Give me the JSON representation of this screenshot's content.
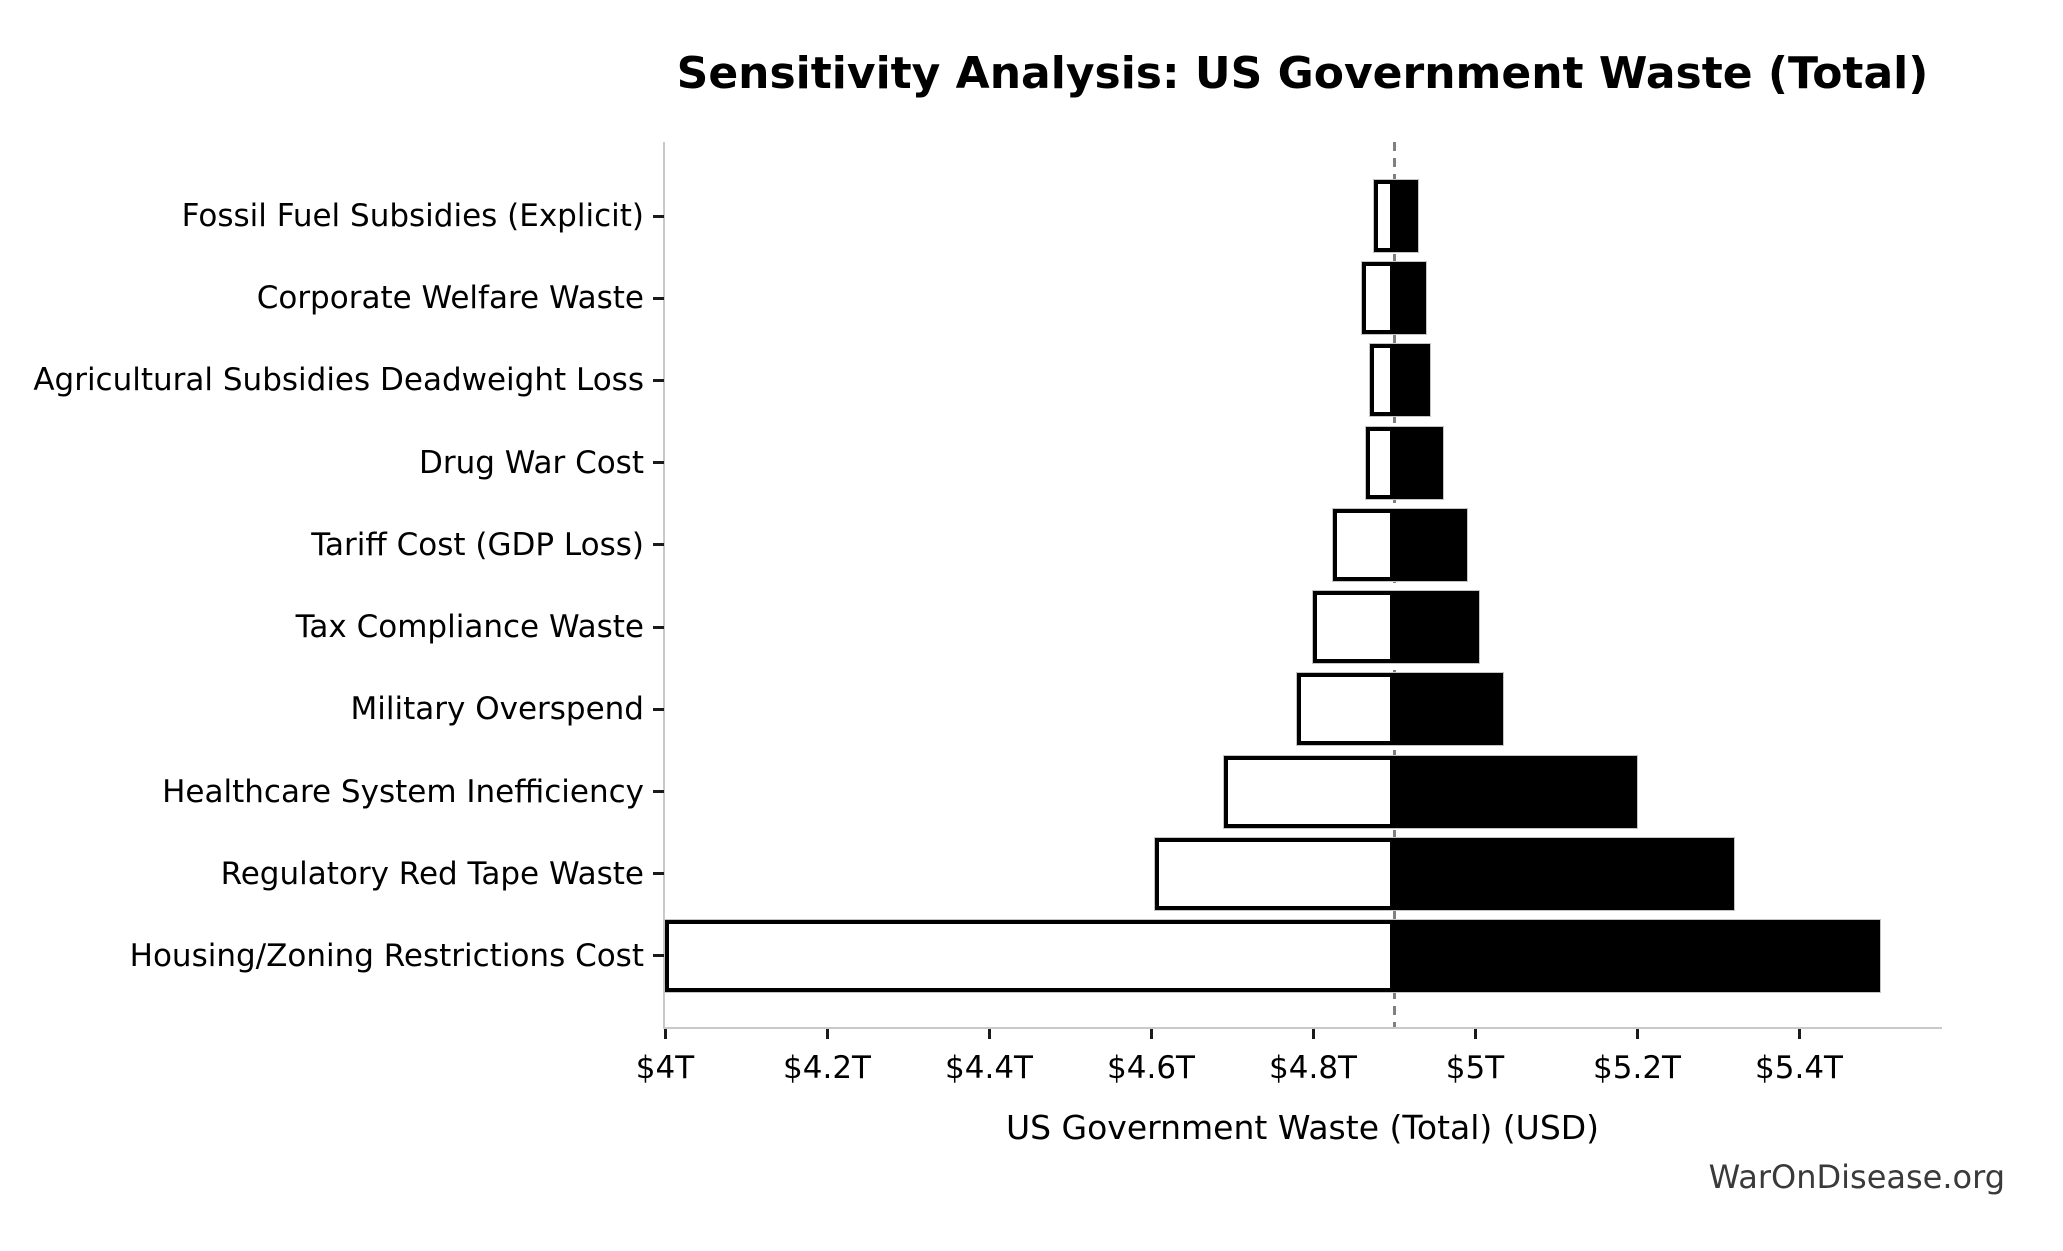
{
  "watermark": "WarOnDisease.org",
  "chart_data": {
    "type": "bar",
    "subtype": "tornado-sensitivity",
    "title": "Sensitivity Analysis: US Government Waste (Total)",
    "xlabel": "US Government Waste (Total) (USD)",
    "unit": "trillions of USD",
    "baseline": 4.9,
    "xlim": [
      4.0,
      5.575
    ],
    "grid": false,
    "legend": "none",
    "xticks": [
      {
        "value": 4.0,
        "label": "$4T"
      },
      {
        "value": 4.2,
        "label": "$4.2T"
      },
      {
        "value": 4.4,
        "label": "$4.4T"
      },
      {
        "value": 4.6,
        "label": "$4.6T"
      },
      {
        "value": 4.8,
        "label": "$4.8T"
      },
      {
        "value": 5.0,
        "label": "$5T"
      },
      {
        "value": 5.2,
        "label": "$5.2T"
      },
      {
        "value": 5.4,
        "label": "$5.4T"
      }
    ],
    "rows": [
      {
        "label": "Fossil Fuel Subsidies (Explicit)",
        "low": 4.875,
        "high": 4.93
      },
      {
        "label": "Corporate Welfare Waste",
        "low": 4.86,
        "high": 4.94
      },
      {
        "label": "Agricultural Subsidies Deadweight Loss",
        "low": 4.87,
        "high": 4.945
      },
      {
        "label": "Drug War Cost",
        "low": 4.865,
        "high": 4.96
      },
      {
        "label": "Tariff Cost (GDP Loss)",
        "low": 4.825,
        "high": 4.99
      },
      {
        "label": "Tax Compliance Waste",
        "low": 4.8,
        "high": 5.005
      },
      {
        "label": "Military Overspend",
        "low": 4.78,
        "high": 5.035
      },
      {
        "label": "Healthcare System Inefficiency",
        "low": 4.69,
        "high": 5.2
      },
      {
        "label": "Regulatory Red Tape Waste",
        "low": 4.605,
        "high": 5.32
      },
      {
        "label": "Housing/Zoning Restrictions Cost",
        "low": 4.0,
        "high": 5.5
      }
    ],
    "colors": {
      "low_fill": "#ffffff",
      "high_fill": "#000000",
      "bar_edge": "#000000",
      "bar_outline": "#c4c4c4",
      "baseline_line": "#808080",
      "spine": "#c9c9c9",
      "tick": "#1a1a1a",
      "watermark_text": "#3a3a3a"
    }
  }
}
